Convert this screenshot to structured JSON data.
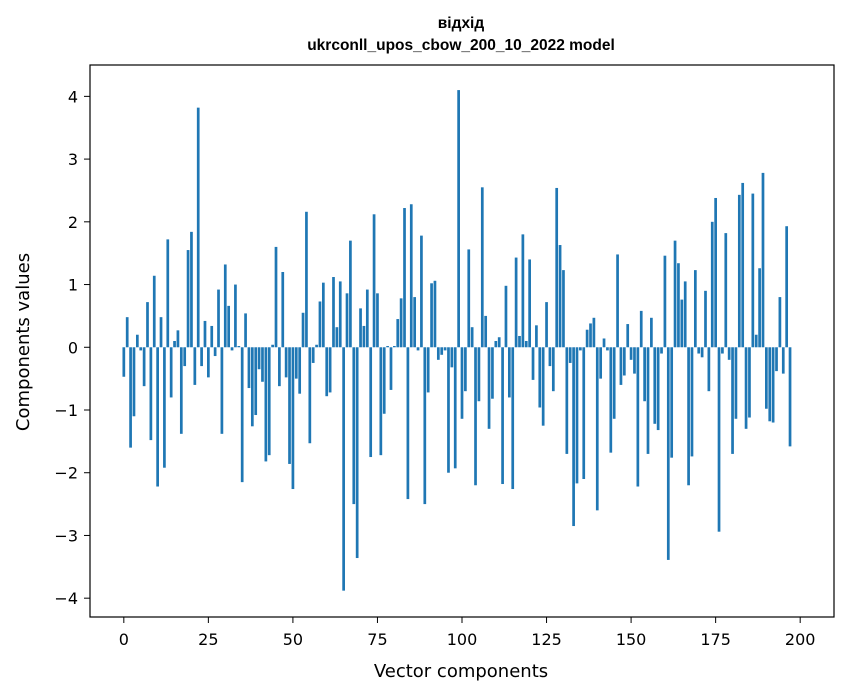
{
  "chart_data": {
    "type": "bar",
    "title_line1": "відхід",
    "title_line2": "ukrconll_upos_cbow_200_10_2022 model",
    "xlabel": "Vector components",
    "ylabel": "Components values",
    "xlim": [
      -10,
      210
    ],
    "ylim": [
      -4.3,
      4.5
    ],
    "xticks": [
      0,
      25,
      50,
      75,
      100,
      125,
      150,
      175,
      200
    ],
    "yticks": [
      4,
      3,
      2,
      1,
      0,
      -1,
      -2,
      -3,
      -4
    ],
    "ytick_labels": [
      "4",
      "3",
      "2",
      "1",
      "0",
      "−1",
      "−2",
      "−3",
      "−4"
    ],
    "bar_color": "#1f77b4",
    "values": [
      -0.47,
      0.48,
      -1.6,
      -1.1,
      0.2,
      -0.05,
      -0.62,
      0.72,
      -1.48,
      1.14,
      -2.22,
      0.48,
      -1.92,
      1.72,
      -0.8,
      0.1,
      0.27,
      -1.38,
      -0.3,
      1.55,
      1.84,
      -0.6,
      3.82,
      -0.3,
      0.42,
      -0.48,
      0.34,
      -0.14,
      0.92,
      -1.38,
      1.32,
      0.66,
      -0.05,
      1.0,
      0.02,
      -2.15,
      0.54,
      -0.65,
      -1.26,
      -1.08,
      -0.35,
      -0.55,
      -1.82,
      -1.72,
      0.04,
      1.6,
      -0.62,
      1.2,
      -0.48,
      -1.86,
      -2.26,
      -0.5,
      -0.74,
      0.55,
      2.16,
      -1.53,
      -0.25,
      0.04,
      0.73,
      1.03,
      -0.78,
      -0.72,
      1.12,
      0.32,
      1.05,
      -3.88,
      0.86,
      1.7,
      -2.5,
      -3.36,
      0.62,
      0.34,
      0.92,
      -1.75,
      2.12,
      0.86,
      -1.72,
      -1.06,
      0.02,
      -0.68,
      0.02,
      0.45,
      0.78,
      2.22,
      -2.42,
      2.28,
      0.8,
      -0.05,
      1.78,
      -2.5,
      -0.72,
      1.02,
      1.06,
      -0.2,
      -0.12,
      -0.05,
      -2.0,
      -0.32,
      -1.93,
      4.1,
      -1.14,
      -0.7,
      1.56,
      0.32,
      -2.2,
      -0.86,
      2.55,
      0.5,
      -1.3,
      -0.82,
      0.1,
      0.16,
      -2.18,
      0.98,
      -0.8,
      -2.26,
      1.43,
      0.18,
      1.8,
      0.1,
      1.4,
      -0.52,
      0.35,
      -0.96,
      -1.25,
      0.72,
      -0.3,
      -0.7,
      2.54,
      1.63,
      1.23,
      -1.7,
      -0.25,
      -2.85,
      -2.17,
      -0.05,
      -2.1,
      0.28,
      0.38,
      0.47,
      -2.6,
      -0.5,
      0.14,
      -0.05,
      -1.68,
      -1.14,
      1.48,
      -0.6,
      -0.45,
      0.37,
      -0.2,
      -0.42,
      -2.22,
      0.58,
      -0.86,
      -1.7,
      0.47,
      -1.22,
      -1.32,
      -0.1,
      1.46,
      -3.39,
      -1.76,
      1.7,
      1.34,
      0.76,
      1.05,
      -2.2,
      -1.74,
      1.23,
      -0.1,
      -0.16,
      0.9,
      -0.7,
      2.0,
      2.38,
      -2.94,
      -0.1,
      1.82,
      -0.2,
      -1.7,
      -1.14,
      2.43,
      2.62,
      -1.3,
      -1.12,
      2.45,
      0.2,
      1.26,
      2.78,
      -0.98,
      -1.18,
      -1.2,
      -0.38,
      0.8,
      -0.42,
      1.93,
      -1.58
    ]
  }
}
